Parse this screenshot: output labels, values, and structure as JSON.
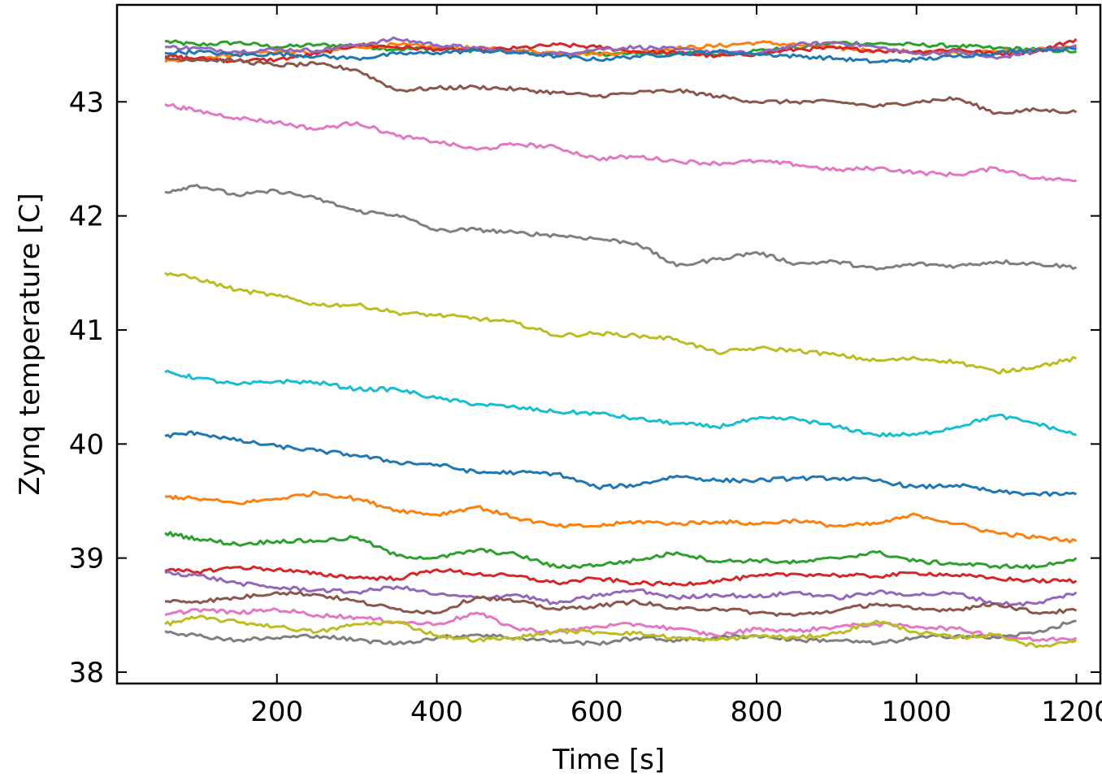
{
  "chart_data": {
    "type": "line",
    "title": "",
    "xlabel": "Time [s]",
    "ylabel": "Zynq temperature [C]",
    "xlim": [
      0,
      1230
    ],
    "ylim": [
      37.9,
      43.85
    ],
    "xticks": [
      200,
      400,
      600,
      800,
      1000,
      1200
    ],
    "yticks": [
      38,
      39,
      40,
      41,
      42,
      43
    ],
    "grid": false,
    "legend": "none",
    "x": [
      60,
      100,
      150,
      200,
      250,
      300,
      350,
      400,
      450,
      500,
      550,
      600,
      650,
      700,
      750,
      800,
      850,
      900,
      950,
      1000,
      1050,
      1100,
      1150,
      1200
    ],
    "series": [
      {
        "color": "#2ca02c",
        "values": [
          43.53,
          43.5,
          43.52,
          43.48,
          43.5,
          43.49,
          43.46,
          43.47,
          43.45,
          43.44,
          43.41,
          43.42,
          43.42,
          43.43,
          43.41,
          43.45,
          43.47,
          43.52,
          43.51,
          43.5,
          43.49,
          43.47,
          43.46,
          43.44
        ]
      },
      {
        "color": "#ff7f0e",
        "values": [
          43.35,
          43.38,
          43.42,
          43.44,
          43.43,
          43.48,
          43.5,
          43.48,
          43.47,
          43.45,
          43.43,
          43.42,
          43.44,
          43.47,
          43.49,
          43.52,
          43.5,
          43.47,
          43.45,
          43.44,
          43.43,
          43.44,
          43.46,
          43.5
        ]
      },
      {
        "color": "#d62728",
        "values": [
          43.4,
          43.38,
          43.36,
          43.37,
          43.42,
          43.5,
          43.48,
          43.46,
          43.45,
          43.47,
          43.5,
          43.48,
          43.44,
          43.43,
          43.4,
          43.42,
          43.46,
          43.47,
          43.45,
          43.44,
          43.46,
          43.42,
          43.44,
          43.55
        ]
      },
      {
        "color": "#9467bd",
        "values": [
          43.48,
          43.47,
          43.44,
          43.46,
          43.45,
          43.5,
          43.55,
          43.5,
          43.47,
          43.43,
          43.42,
          43.46,
          43.48,
          43.46,
          43.44,
          43.42,
          43.5,
          43.52,
          43.48,
          43.42,
          43.44,
          43.38,
          43.45,
          43.48
        ]
      },
      {
        "color": "#1f77b4",
        "values": [
          43.43,
          43.44,
          43.41,
          43.42,
          43.4,
          43.38,
          43.42,
          43.43,
          43.45,
          43.43,
          43.4,
          43.37,
          43.4,
          43.42,
          43.44,
          43.42,
          43.4,
          43.38,
          43.35,
          43.37,
          43.4,
          43.43,
          43.46,
          43.46
        ]
      },
      {
        "color": "#8c564b",
        "values": [
          43.38,
          43.37,
          43.36,
          43.32,
          43.33,
          43.28,
          43.1,
          43.12,
          43.13,
          43.11,
          43.08,
          43.05,
          43.08,
          43.1,
          43.05,
          43.0,
          43.0,
          43.0,
          42.96,
          43.0,
          43.03,
          42.9,
          42.93,
          42.91
        ]
      },
      {
        "color": "#e377c2",
        "values": [
          42.98,
          42.92,
          42.86,
          42.82,
          42.76,
          42.82,
          42.7,
          42.65,
          42.58,
          42.63,
          42.6,
          42.5,
          42.52,
          42.48,
          42.46,
          42.48,
          42.45,
          42.4,
          42.42,
          42.38,
          42.36,
          42.42,
          42.33,
          42.31
        ]
      },
      {
        "color": "#7f7f7f",
        "values": [
          42.21,
          42.27,
          42.18,
          42.22,
          42.15,
          42.04,
          42.01,
          41.87,
          41.88,
          41.85,
          41.83,
          41.8,
          41.76,
          41.56,
          41.62,
          41.68,
          41.58,
          41.6,
          41.53,
          41.58,
          41.56,
          41.6,
          41.58,
          41.55
        ]
      },
      {
        "color": "#bcbd22",
        "values": [
          41.5,
          41.45,
          41.35,
          41.3,
          41.22,
          41.22,
          41.15,
          41.13,
          41.1,
          41.06,
          40.95,
          40.97,
          40.95,
          40.92,
          40.8,
          40.84,
          40.82,
          40.78,
          40.73,
          40.75,
          40.72,
          40.63,
          40.68,
          40.75
        ]
      },
      {
        "color": "#17becf",
        "values": [
          40.63,
          40.58,
          40.52,
          40.55,
          40.54,
          40.48,
          40.48,
          40.4,
          40.35,
          40.32,
          40.28,
          40.27,
          40.22,
          40.18,
          40.15,
          40.22,
          40.22,
          40.15,
          40.08,
          40.08,
          40.15,
          40.25,
          40.18,
          40.08
        ]
      },
      {
        "color": "#1f77b4",
        "values": [
          40.07,
          40.1,
          40.03,
          39.98,
          39.94,
          39.9,
          39.84,
          39.82,
          39.75,
          39.75,
          39.74,
          39.62,
          39.64,
          39.72,
          39.68,
          39.68,
          39.7,
          39.7,
          39.68,
          39.62,
          39.64,
          39.58,
          39.56,
          39.56
        ]
      },
      {
        "color": "#ff7f0e",
        "values": [
          39.54,
          39.52,
          39.48,
          39.52,
          39.57,
          39.52,
          39.42,
          39.38,
          39.45,
          39.35,
          39.28,
          39.28,
          39.32,
          39.3,
          39.32,
          39.3,
          39.33,
          39.28,
          39.3,
          39.38,
          39.3,
          39.22,
          39.18,
          39.15
        ]
      },
      {
        "color": "#2ca02c",
        "values": [
          39.22,
          39.17,
          39.12,
          39.15,
          39.15,
          39.18,
          39.02,
          39.0,
          39.07,
          39.03,
          38.92,
          38.94,
          38.98,
          39.05,
          38.97,
          38.98,
          38.96,
          39.0,
          39.05,
          38.97,
          38.95,
          38.93,
          38.92,
          39.0
        ]
      },
      {
        "color": "#d62728",
        "values": [
          38.89,
          38.88,
          38.92,
          38.9,
          38.86,
          38.83,
          38.82,
          38.9,
          38.86,
          38.84,
          38.78,
          38.82,
          38.78,
          38.77,
          38.8,
          38.84,
          38.86,
          38.85,
          38.84,
          38.87,
          38.85,
          38.82,
          38.8,
          38.8
        ]
      },
      {
        "color": "#9467bd",
        "values": [
          38.87,
          38.85,
          38.78,
          38.74,
          38.72,
          38.7,
          38.75,
          38.68,
          38.65,
          38.68,
          38.6,
          38.67,
          38.72,
          38.65,
          38.68,
          38.66,
          38.7,
          38.65,
          38.7,
          38.68,
          38.69,
          38.6,
          38.6,
          38.7
        ]
      },
      {
        "color": "#8c564b",
        "values": [
          38.62,
          38.62,
          38.65,
          38.7,
          38.68,
          38.62,
          38.55,
          38.52,
          38.66,
          38.62,
          38.55,
          38.58,
          38.62,
          38.55,
          38.56,
          38.52,
          38.5,
          38.54,
          38.6,
          38.55,
          38.55,
          38.6,
          38.52,
          38.54
        ]
      },
      {
        "color": "#e377c2",
        "values": [
          38.5,
          38.55,
          38.52,
          38.55,
          38.5,
          38.48,
          38.44,
          38.42,
          38.52,
          38.38,
          38.35,
          38.4,
          38.42,
          38.38,
          38.32,
          38.38,
          38.36,
          38.4,
          38.42,
          38.4,
          38.38,
          38.32,
          38.28,
          38.3
        ]
      },
      {
        "color": "#7f7f7f",
        "values": [
          38.36,
          38.32,
          38.28,
          38.3,
          38.32,
          38.28,
          38.25,
          38.3,
          38.33,
          38.3,
          38.27,
          38.25,
          38.3,
          38.28,
          38.3,
          38.32,
          38.28,
          38.28,
          38.25,
          38.3,
          38.32,
          38.3,
          38.35,
          38.45
        ]
      },
      {
        "color": "#bcbd22",
        "values": [
          38.42,
          38.48,
          38.44,
          38.4,
          38.35,
          38.42,
          38.44,
          38.32,
          38.28,
          38.3,
          38.36,
          38.35,
          38.34,
          38.3,
          38.28,
          38.32,
          38.3,
          38.34,
          38.45,
          38.35,
          38.3,
          38.33,
          38.22,
          38.28
        ]
      }
    ]
  }
}
